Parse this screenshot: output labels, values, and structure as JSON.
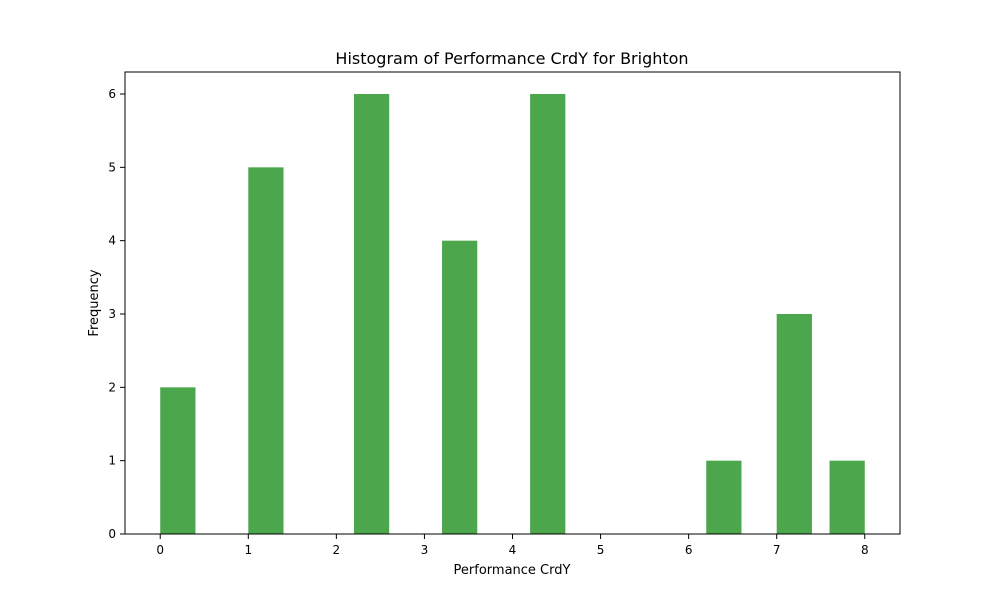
{
  "chart_data": {
    "type": "bar",
    "title": "Histogram of Performance CrdY for Brighton",
    "xlabel": "Performance CrdY",
    "ylabel": "Frequency",
    "bar_color": "#4ca64c",
    "xlim": [
      -0.4,
      8.4
    ],
    "ylim": [
      0,
      6.3
    ],
    "xticks": [
      0,
      1,
      2,
      3,
      4,
      5,
      6,
      7,
      8
    ],
    "yticks": [
      0,
      1,
      2,
      3,
      4,
      5,
      6
    ],
    "bin_width": 0.4,
    "bins": [
      {
        "start": 0.0,
        "value": 2
      },
      {
        "start": 1.0,
        "value": 5
      },
      {
        "start": 2.2,
        "value": 6
      },
      {
        "start": 3.2,
        "value": 4
      },
      {
        "start": 4.2,
        "value": 6
      },
      {
        "start": 6.2,
        "value": 1
      },
      {
        "start": 7.0,
        "value": 3
      },
      {
        "start": 7.6,
        "value": 1
      }
    ],
    "grid": false,
    "legend": "none"
  }
}
